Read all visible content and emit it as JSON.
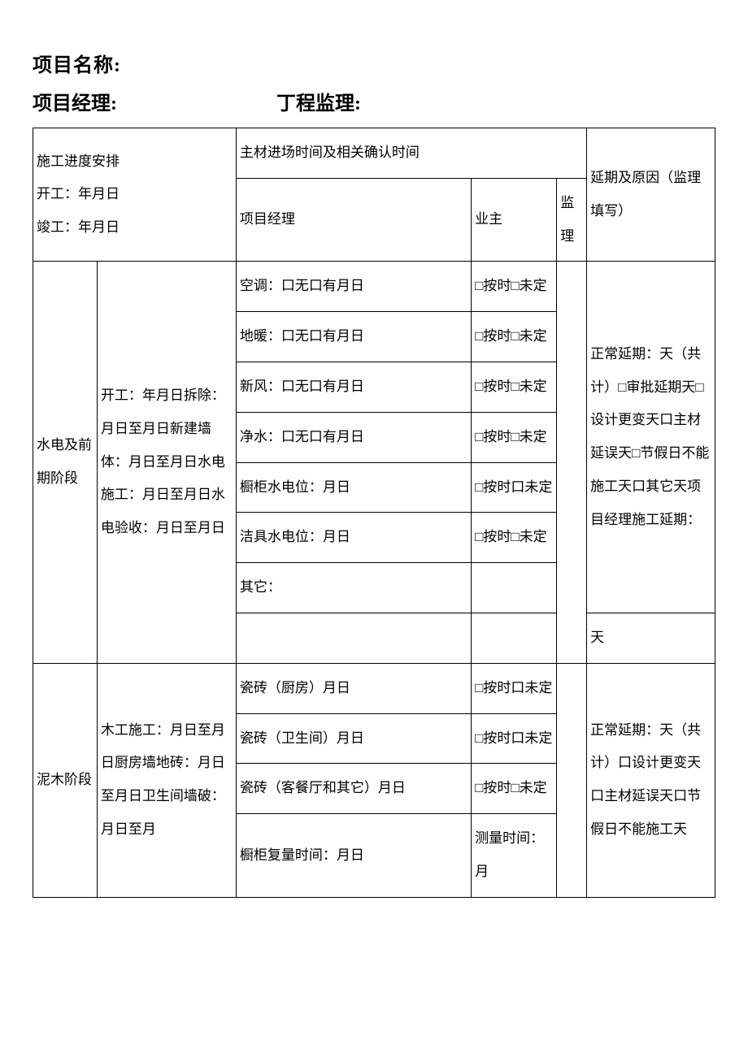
{
  "header": {
    "project_name_label": "项目名称:",
    "project_manager_label": "项目经理:",
    "supervisor_label": "丁程监理:"
  },
  "table_headers": {
    "schedule_arrangement": "施工进度安排",
    "start_date": "开工：年月日",
    "end_date": "竣工：年月日",
    "material_timing": "主材进场时间及相关确认时间",
    "project_manager": "项目经理",
    "owner": "业主",
    "supervisor": "监理",
    "delay_reason": "延期及原因",
    "delay_note": "（监理填写）"
  },
  "stage1": {
    "name": "水电及前期阶段",
    "schedule": "开工：年月日拆除：月日至月日新建墙体：月日至月日水电施工：月日至月日水电验收：月日至月日",
    "items": [
      {
        "label": "空调：口无口有月日",
        "owner": "□按时□未定"
      },
      {
        "label": "地暖：口无口有月日",
        "owner": "□按时□未定"
      },
      {
        "label": "新风：口无口有月日",
        "owner": "□按时□未定"
      },
      {
        "label": "净水：口无口有月日",
        "owner": "□按时□未定"
      },
      {
        "label": "橱柜水电位：月日",
        "owner": "□按时口未定"
      },
      {
        "label": "洁具水电位：月日",
        "owner": "□按时□未定"
      },
      {
        "label": "其它：",
        "owner": ""
      }
    ],
    "delay": "正常延期：天（共计）□审批延期天□设计更变天口主材延误天□节假日不能施工天口其它天项目经理施工延期：",
    "delay_days": "天"
  },
  "stage2": {
    "name": "泥木阶段",
    "schedule": "木工施工：月日至月日厨房墙地砖：月日至月日卫生间墙破：月日至月",
    "items": [
      {
        "label": "瓷砖（厨房）月日",
        "owner": "□按时口未定"
      },
      {
        "label": "瓷砖（卫生间）月日",
        "owner": "□按时口未定"
      },
      {
        "label": "瓷砖（客餐厅和其它）月日",
        "owner": "□按时□未定"
      },
      {
        "label": "橱柜复量时间：月日",
        "owner": "测量时间：月"
      }
    ],
    "delay": "正常延期：天（共计）口设计更变天口主材延误天口节假日不能施工天"
  }
}
